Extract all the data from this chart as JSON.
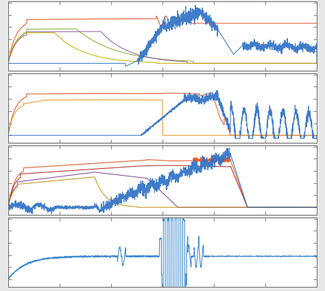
{
  "background": "#e8e8e8",
  "panel_bg": "#ffffff",
  "spine_color": "#666666",
  "figsize": [
    4.74,
    4.24
  ],
  "dpi": 100,
  "n_points": 3000,
  "panels": 4
}
